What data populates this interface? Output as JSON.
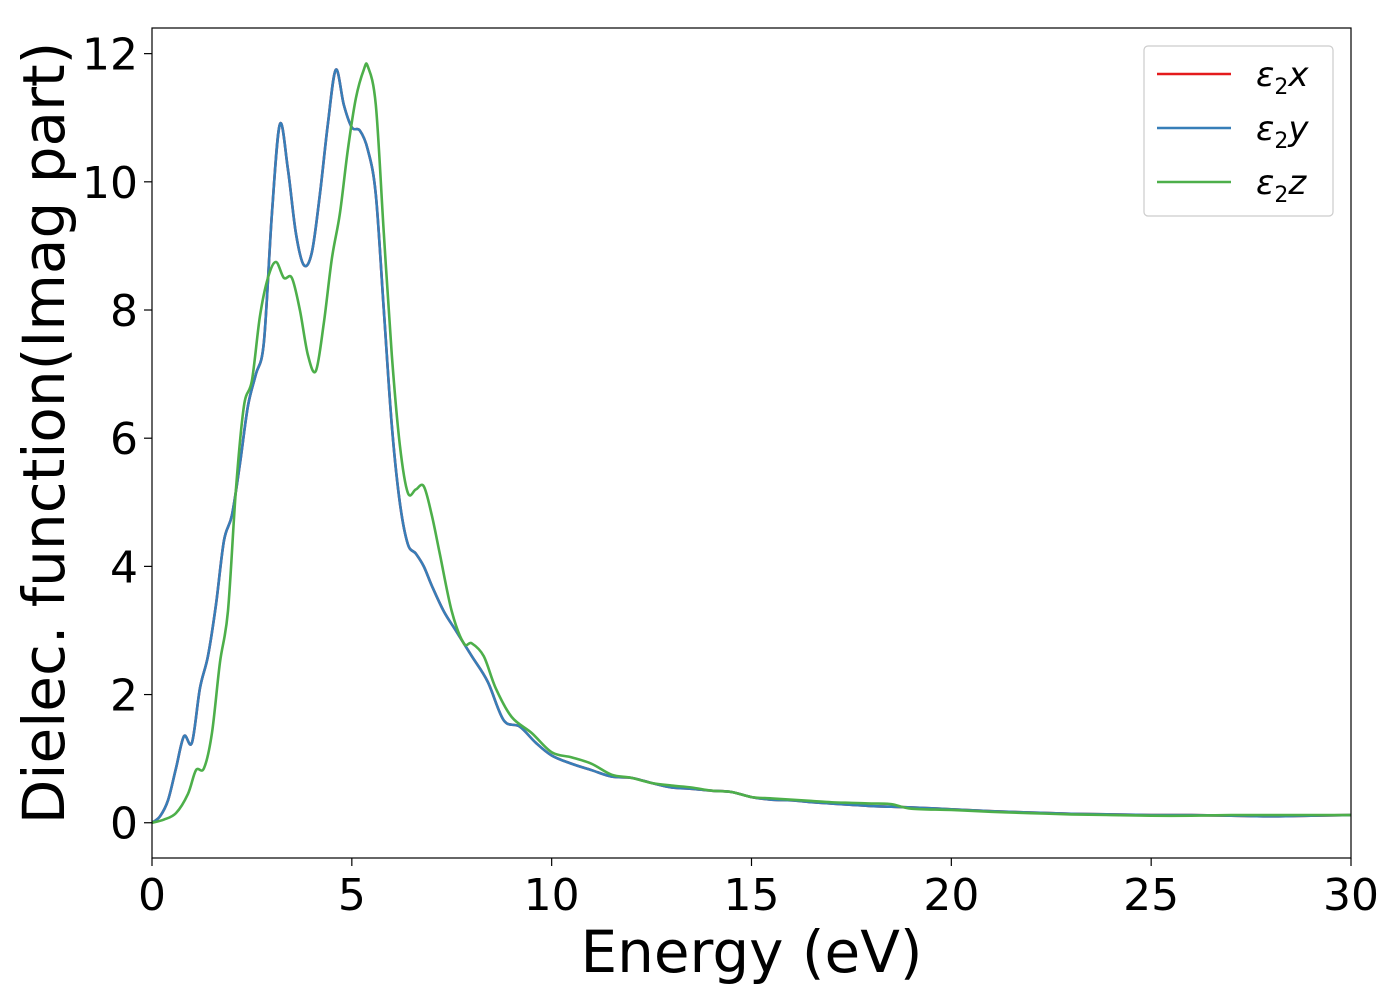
{
  "chart_data": {
    "type": "line",
    "xlabel": "Energy (eV)",
    "ylabel": "Dielec. function(Imag part)",
    "xlim": [
      0,
      30
    ],
    "ylim": [
      -0.55,
      12.4
    ],
    "xticks": [
      0,
      5,
      10,
      15,
      20,
      25,
      30
    ],
    "yticks": [
      0,
      2,
      4,
      6,
      8,
      10,
      12
    ],
    "grid": false,
    "legend": "top-right",
    "legend_entries": [
      {
        "base": "ε",
        "sub": "2",
        "var": "x",
        "color": "#e41a1c"
      },
      {
        "base": "ε",
        "sub": "2",
        "var": "y",
        "color": "#377eb8"
      },
      {
        "base": "ε",
        "sub": "2",
        "var": "z",
        "color": "#4daf4a"
      }
    ],
    "series": [
      {
        "name": "ε2x",
        "color": "#e41a1c",
        "x": [
          0,
          0.2,
          0.4,
          0.6,
          0.8,
          1.0,
          1.2,
          1.4,
          1.6,
          1.8,
          2.0,
          2.2,
          2.4,
          2.6,
          2.8,
          3.0,
          3.2,
          3.4,
          3.6,
          3.8,
          4.0,
          4.2,
          4.4,
          4.6,
          4.8,
          5.0,
          5.2,
          5.4,
          5.6,
          5.8,
          6.0,
          6.2,
          6.4,
          6.6,
          6.8,
          7.0,
          7.3,
          7.6,
          8.0,
          8.4,
          8.8,
          9.2,
          9.6,
          10.0,
          10.5,
          11.0,
          11.5,
          12.0,
          12.5,
          13.0,
          13.5,
          14.0,
          14.5,
          15.0,
          15.5,
          16.0,
          16.5,
          17.0,
          17.5,
          18.0,
          18.5,
          19.0,
          20.0,
          21.0,
          22.0,
          23.0,
          24.0,
          25.0,
          26.0,
          27.0,
          28.0,
          29.0,
          30.0
        ],
        "values": [
          0.0,
          0.1,
          0.35,
          0.85,
          1.35,
          1.25,
          2.1,
          2.6,
          3.4,
          4.4,
          4.8,
          5.6,
          6.5,
          7.0,
          7.5,
          9.5,
          10.9,
          10.2,
          9.2,
          8.7,
          8.9,
          9.8,
          10.9,
          11.75,
          11.2,
          10.85,
          10.8,
          10.5,
          9.8,
          8.0,
          6.2,
          5.0,
          4.35,
          4.2,
          4.0,
          3.7,
          3.3,
          3.0,
          2.6,
          2.2,
          1.6,
          1.5,
          1.25,
          1.05,
          0.92,
          0.82,
          0.72,
          0.7,
          0.62,
          0.55,
          0.53,
          0.5,
          0.48,
          0.4,
          0.36,
          0.35,
          0.32,
          0.3,
          0.28,
          0.26,
          0.25,
          0.24,
          0.21,
          0.18,
          0.16,
          0.14,
          0.13,
          0.12,
          0.12,
          0.11,
          0.1,
          0.11,
          0.12
        ]
      },
      {
        "name": "ε2y",
        "color": "#377eb8",
        "x": [
          0,
          0.2,
          0.4,
          0.6,
          0.8,
          1.0,
          1.2,
          1.4,
          1.6,
          1.8,
          2.0,
          2.2,
          2.4,
          2.6,
          2.8,
          3.0,
          3.2,
          3.4,
          3.6,
          3.8,
          4.0,
          4.2,
          4.4,
          4.6,
          4.8,
          5.0,
          5.2,
          5.4,
          5.6,
          5.8,
          6.0,
          6.2,
          6.4,
          6.6,
          6.8,
          7.0,
          7.3,
          7.6,
          8.0,
          8.4,
          8.8,
          9.2,
          9.6,
          10.0,
          10.5,
          11.0,
          11.5,
          12.0,
          12.5,
          13.0,
          13.5,
          14.0,
          14.5,
          15.0,
          15.5,
          16.0,
          16.5,
          17.0,
          17.5,
          18.0,
          18.5,
          19.0,
          20.0,
          21.0,
          22.0,
          23.0,
          24.0,
          25.0,
          26.0,
          27.0,
          28.0,
          29.0,
          30.0
        ],
        "values": [
          0.0,
          0.1,
          0.35,
          0.85,
          1.35,
          1.25,
          2.1,
          2.6,
          3.4,
          4.4,
          4.8,
          5.6,
          6.5,
          7.0,
          7.5,
          9.5,
          10.9,
          10.2,
          9.2,
          8.7,
          8.9,
          9.8,
          10.9,
          11.75,
          11.2,
          10.85,
          10.8,
          10.5,
          9.8,
          8.0,
          6.2,
          5.0,
          4.35,
          4.2,
          4.0,
          3.7,
          3.3,
          3.0,
          2.6,
          2.2,
          1.6,
          1.5,
          1.25,
          1.05,
          0.92,
          0.82,
          0.72,
          0.7,
          0.62,
          0.55,
          0.53,
          0.5,
          0.48,
          0.4,
          0.36,
          0.35,
          0.32,
          0.3,
          0.28,
          0.26,
          0.25,
          0.24,
          0.21,
          0.18,
          0.16,
          0.14,
          0.13,
          0.12,
          0.12,
          0.11,
          0.1,
          0.11,
          0.12
        ]
      },
      {
        "name": "ε2z",
        "color": "#4daf4a",
        "x": [
          0,
          0.3,
          0.6,
          0.9,
          1.1,
          1.3,
          1.5,
          1.7,
          1.9,
          2.1,
          2.3,
          2.5,
          2.7,
          2.9,
          3.1,
          3.3,
          3.5,
          3.7,
          3.9,
          4.1,
          4.3,
          4.5,
          4.7,
          4.9,
          5.1,
          5.3,
          5.4,
          5.6,
          5.8,
          6.0,
          6.2,
          6.4,
          6.6,
          6.8,
          7.0,
          7.2,
          7.5,
          7.8,
          8.0,
          8.3,
          8.6,
          9.0,
          9.5,
          10.0,
          10.5,
          11.0,
          11.5,
          12.0,
          12.5,
          13.0,
          13.5,
          14.0,
          14.5,
          15.0,
          15.5,
          16.0,
          16.5,
          17.0,
          17.5,
          18.0,
          18.5,
          19.0,
          20.0,
          21.0,
          22.0,
          23.0,
          24.0,
          25.0,
          26.0,
          27.0,
          28.0,
          29.0,
          30.0
        ],
        "values": [
          0.0,
          0.05,
          0.15,
          0.45,
          0.82,
          0.85,
          1.4,
          2.5,
          3.3,
          5.2,
          6.5,
          6.9,
          7.9,
          8.5,
          8.75,
          8.5,
          8.5,
          8.0,
          7.3,
          7.05,
          7.8,
          8.8,
          9.5,
          10.5,
          11.3,
          11.75,
          11.8,
          11.2,
          9.2,
          7.3,
          5.9,
          5.15,
          5.2,
          5.25,
          4.8,
          4.2,
          3.3,
          2.8,
          2.8,
          2.6,
          2.1,
          1.65,
          1.4,
          1.1,
          1.02,
          0.92,
          0.75,
          0.7,
          0.62,
          0.58,
          0.55,
          0.5,
          0.48,
          0.4,
          0.38,
          0.36,
          0.34,
          0.32,
          0.31,
          0.3,
          0.29,
          0.22,
          0.2,
          0.17,
          0.15,
          0.13,
          0.12,
          0.11,
          0.11,
          0.12,
          0.12,
          0.12,
          0.12
        ]
      }
    ]
  }
}
